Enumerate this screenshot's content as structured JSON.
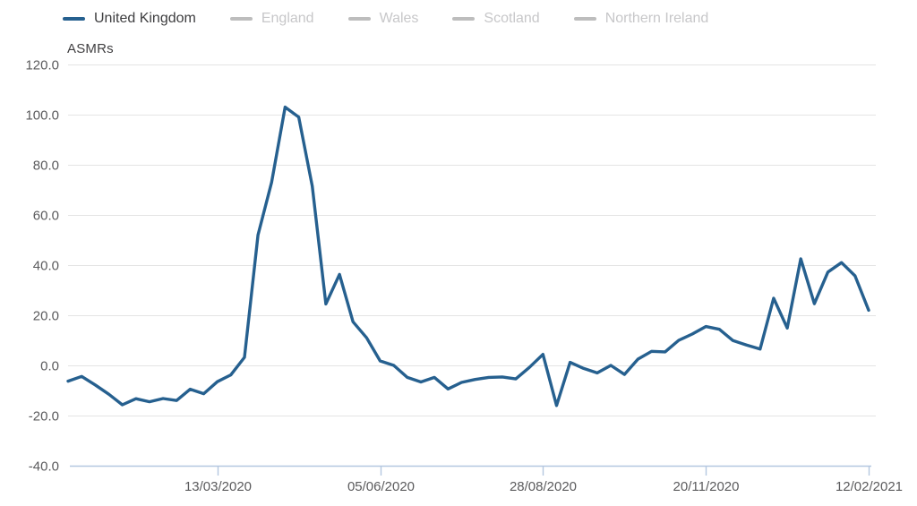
{
  "legend": {
    "items": [
      {
        "label": "United Kingdom",
        "state": "active",
        "swatch_color": "#26608f",
        "text_color": "#3d3d3f"
      },
      {
        "label": "England",
        "state": "inactive",
        "swatch_color": "#bdbdbd",
        "text_color": "#c7c7c9"
      },
      {
        "label": "Wales",
        "state": "inactive",
        "swatch_color": "#bdbdbd",
        "text_color": "#c7c7c9"
      },
      {
        "label": "Scotland",
        "state": "inactive",
        "swatch_color": "#bdbdbd",
        "text_color": "#c7c7c9"
      },
      {
        "label": "Northern Ireland",
        "state": "inactive",
        "swatch_color": "#bdbdbd",
        "text_color": "#c7c7c9"
      }
    ]
  },
  "chart_data": {
    "type": "line",
    "title": "ASMRs",
    "x": [
      "27/12/2019",
      "03/01/2020",
      "10/01/2020",
      "17/01/2020",
      "24/01/2020",
      "31/01/2020",
      "07/02/2020",
      "14/02/2020",
      "21/02/2020",
      "28/02/2020",
      "06/03/2020",
      "13/03/2020",
      "20/03/2020",
      "27/03/2020",
      "03/04/2020",
      "10/04/2020",
      "17/04/2020",
      "24/04/2020",
      "01/05/2020",
      "08/05/2020",
      "15/05/2020",
      "22/05/2020",
      "29/05/2020",
      "05/06/2020",
      "12/06/2020",
      "19/06/2020",
      "26/06/2020",
      "03/07/2020",
      "10/07/2020",
      "17/07/2020",
      "24/07/2020",
      "31/07/2020",
      "07/08/2020",
      "14/08/2020",
      "21/08/2020",
      "28/08/2020",
      "04/09/2020",
      "11/09/2020",
      "18/09/2020",
      "25/09/2020",
      "02/10/2020",
      "09/10/2020",
      "16/10/2020",
      "23/10/2020",
      "30/10/2020",
      "06/11/2020",
      "13/11/2020",
      "20/11/2020",
      "27/11/2020",
      "04/12/2020",
      "11/12/2020",
      "18/12/2020",
      "25/12/2020",
      "01/01/2021",
      "08/01/2021",
      "15/01/2021",
      "22/01/2021",
      "29/01/2021",
      "05/02/2021",
      "12/02/2021"
    ],
    "series": [
      {
        "name": "United Kingdom",
        "color": "#26608f",
        "values": [
          -6.3,
          -4.4,
          -7.8,
          -11.5,
          -15.7,
          -13.3,
          -14.5,
          -13.2,
          -14.0,
          -9.5,
          -11.3,
          -6.5,
          -3.8,
          3.2,
          52.0,
          73.0,
          103.0,
          99.0,
          71.5,
          24.5,
          36.3,
          17.4,
          11.0,
          1.8,
          0.0,
          -4.8,
          -6.6,
          -4.8,
          -9.4,
          -6.8,
          -5.6,
          -4.8,
          -4.6,
          -5.4,
          -0.8,
          4.4,
          -16.0,
          1.2,
          -1.2,
          -3.0,
          0.0,
          -3.6,
          2.5,
          5.6,
          5.4,
          10.0,
          12.5,
          15.5,
          14.4,
          9.9,
          8.1,
          6.5,
          26.8,
          14.9,
          42.5,
          24.6,
          37.2,
          41.0,
          35.7,
          22.0
        ]
      }
    ],
    "x_tick_labels": [
      "13/03/2020",
      "05/06/2020",
      "28/08/2020",
      "20/11/2020",
      "12/02/2021"
    ],
    "y_ticks": [
      120,
      100,
      80,
      60,
      40,
      20,
      0,
      -20,
      -40
    ],
    "y_tick_labels": [
      "120.0",
      "100.0",
      "80.0",
      "60.0",
      "40.0",
      "20.0",
      "0.0",
      "-20.0",
      "-40.0"
    ],
    "ylim": [
      -40,
      120
    ],
    "grid": true,
    "legend_position": "top",
    "grid_color": "#e4e4e4",
    "axis_color": "#b4c7e0",
    "label_color": "#5b5b5d"
  }
}
